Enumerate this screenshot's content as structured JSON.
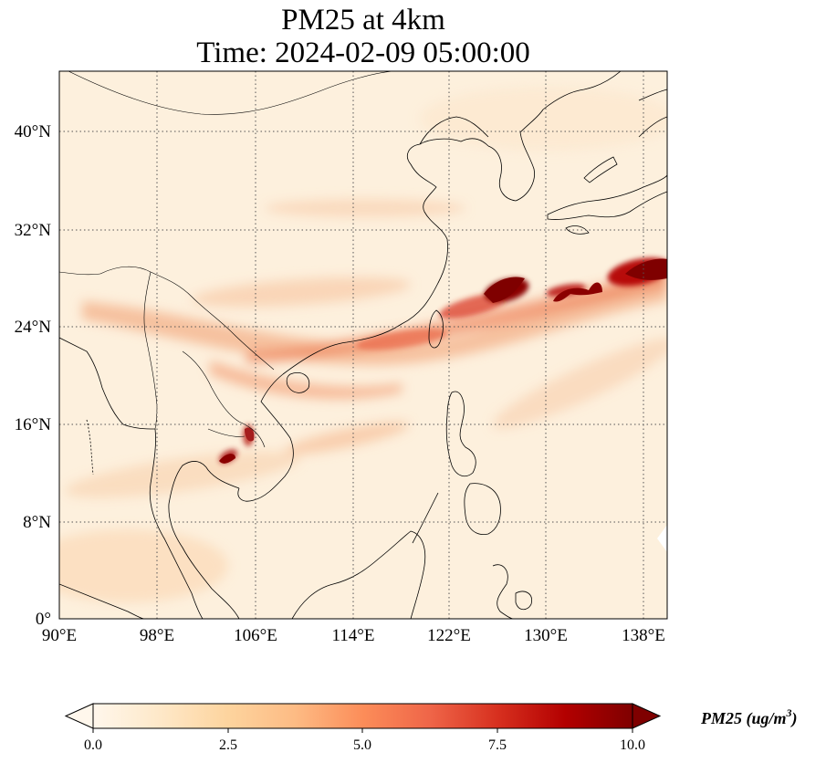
{
  "title": {
    "line1": "PM25 at 4km",
    "line2": "Time: 2024-02-09 05:00:00"
  },
  "map": {
    "lon_range": [
      90,
      139
    ],
    "lat_range": [
      0,
      45
    ],
    "lon_ticks": [
      "90°E",
      "98°E",
      "106°E",
      "114°E",
      "122°E",
      "130°E",
      "138°E"
    ],
    "lat_ticks": [
      "0°",
      "8°N",
      "16°N",
      "24°N",
      "32°N",
      "40°N"
    ],
    "gridlines": "dotted",
    "colormap": "OrRd"
  },
  "colorbar": {
    "ticks": [
      "0.0",
      "2.5",
      "5.0",
      "7.5",
      "10.0"
    ],
    "range": [
      0,
      10
    ],
    "extend": "both",
    "label_main": "PM25 (ug/m",
    "label_sup": "3",
    "label_end": ")",
    "colors": [
      "#fff7ec",
      "#fee8c8",
      "#fdd49e",
      "#fdbb84",
      "#fc8d59",
      "#ef6548",
      "#d7301f",
      "#b30000",
      "#7f0000"
    ]
  },
  "plume_colors": {
    "background": "#fdf0dd",
    "light": "#fbd9b5",
    "medium": "#f4a582",
    "strong": "#d7301f",
    "peak": "#8b0000"
  }
}
